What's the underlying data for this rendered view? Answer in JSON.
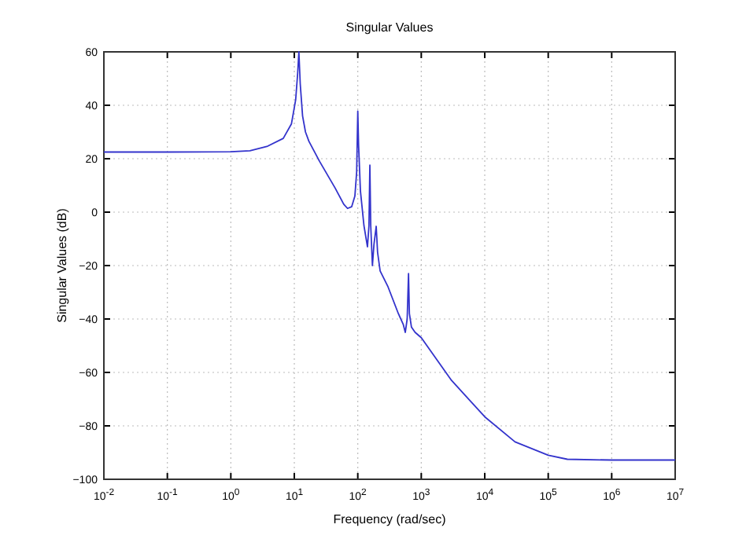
{
  "chart_data": {
    "type": "line",
    "title": "Singular Values",
    "xlabel": "Frequency (rad/sec)",
    "ylabel": "Singular Values (dB)",
    "log": "x",
    "grid": true,
    "line_style": "solid",
    "marker": "none",
    "xlim": [
      0.01,
      10000000
    ],
    "ylim": [
      -100,
      60
    ],
    "xticks": [
      {
        "value": 0.01,
        "label": "10$^{-2}$"
      },
      {
        "value": 0.1,
        "label": "10$^{-1}$"
      },
      {
        "value": 1,
        "label": "10$^{0}$"
      },
      {
        "value": 10,
        "label": "10$^{1}$"
      },
      {
        "value": 100,
        "label": "10$^{2}$"
      },
      {
        "value": 1000,
        "label": "10$^{3}$"
      },
      {
        "value": 10000,
        "label": "10$^{4}$"
      },
      {
        "value": 100000,
        "label": "10$^{5}$"
      },
      {
        "value": 1000000,
        "label": "10$^{6}$"
      },
      {
        "value": 10000000,
        "label": "10$^{7}$"
      }
    ],
    "yticks": [
      -100,
      -80,
      -60,
      -40,
      -20,
      0,
      20,
      40,
      60
    ],
    "series": [
      {
        "color": "#3333cc",
        "x": [
          0.01,
          0.1,
          1,
          2,
          3.8,
          6.7,
          9,
          10.5,
          11.3,
          11.8,
          12.4,
          13.5,
          15,
          17,
          25,
          44,
          60,
          69,
          80,
          90,
          96,
          100,
          103,
          110,
          125,
          142,
          150,
          155,
          160,
          170,
          180,
          195,
          205,
          225,
          300,
          436,
          520,
          560,
          600,
          630,
          650,
          700,
          800,
          1000,
          3000,
          10000,
          30000,
          100000,
          200000,
          1000000,
          10000000
        ],
        "values": [
          22.5,
          22.5,
          22.6,
          23,
          24.7,
          27.6,
          33,
          42,
          52,
          60,
          48,
          36,
          30,
          26.5,
          19,
          9,
          3,
          1.4,
          2,
          6,
          15,
          37.8,
          25,
          8,
          -5,
          -13,
          -5,
          17.6,
          -5,
          -20,
          -12,
          -5.3,
          -15,
          -22,
          -28,
          -38,
          -42,
          -45,
          -40,
          -23,
          -38,
          -43,
          -45,
          -47,
          -63,
          -76.6,
          -86,
          -91,
          -92.5,
          -92.8,
          -92.8
        ]
      }
    ]
  }
}
